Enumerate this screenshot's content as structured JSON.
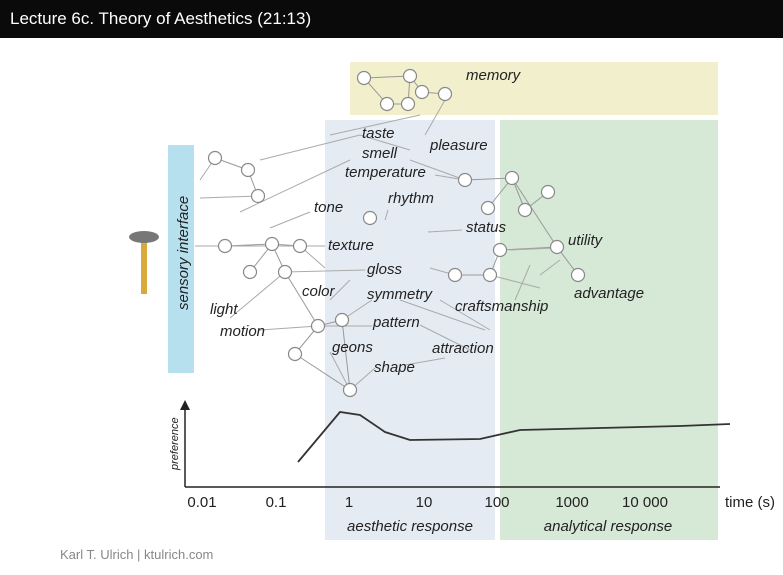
{
  "header": {
    "title": "Lecture 6c. Theory of Aesthetics (21:13)"
  },
  "diagram": {
    "memory": "memory",
    "sensory_interface": "sensory interface",
    "labels": [
      "taste",
      "smell",
      "pleasure",
      "temperature",
      "tone",
      "rhythm",
      "texture",
      "status",
      "utility",
      "gloss",
      "color",
      "symmetry",
      "advantage",
      "craftsmanship",
      "light",
      "motion",
      "pattern",
      "geons",
      "attraction",
      "shape"
    ],
    "y_axis_label": "preference",
    "x_ticks": [
      "0.01",
      "0.1",
      "1",
      "10",
      "100",
      "1000",
      "10 000"
    ],
    "x_axis_label": "time (s)",
    "zones": [
      "aesthetic response",
      "analytical response"
    ]
  },
  "footer": "Karl T. Ulrich | ktulrich.com"
}
